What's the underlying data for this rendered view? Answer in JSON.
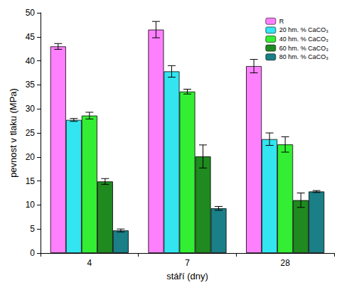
{
  "chart_data": {
    "type": "bar",
    "x_label": "stáří (dny)",
    "y_label": "pevnost v tlaku (MPa)",
    "categories": [
      "4",
      "7",
      "28"
    ],
    "series": [
      {
        "name": "R",
        "color": "#ff80ff",
        "values": [
          43.0,
          46.5,
          38.9
        ],
        "errors": [
          0.6,
          1.7,
          1.4
        ]
      },
      {
        "name": "20 hm. % CaCO₃",
        "color": "#33e5f0",
        "values": [
          27.7,
          37.8,
          23.7
        ],
        "errors": [
          0.3,
          1.2,
          1.3
        ]
      },
      {
        "name": "40 hm. % CaCO₃",
        "color": "#33ee33",
        "values": [
          28.6,
          33.6,
          22.6
        ],
        "errors": [
          0.7,
          0.5,
          1.6
        ]
      },
      {
        "name": "60 hm. % CaCO₃",
        "color": "#1f8a1f",
        "values": [
          14.9,
          20.1,
          11.0
        ],
        "errors": [
          0.6,
          2.4,
          1.5
        ]
      },
      {
        "name": "80 hm. % CaCO₃",
        "color": "#1a7f86",
        "values": [
          4.7,
          9.3,
          12.8
        ],
        "errors": [
          0.3,
          0.4,
          0.2
        ]
      }
    ],
    "ylim": [
      0,
      50
    ],
    "yticks": [
      0,
      5,
      10,
      15,
      20,
      25,
      30,
      35,
      40,
      45,
      50
    ],
    "legend": "upper right",
    "grid": false
  }
}
